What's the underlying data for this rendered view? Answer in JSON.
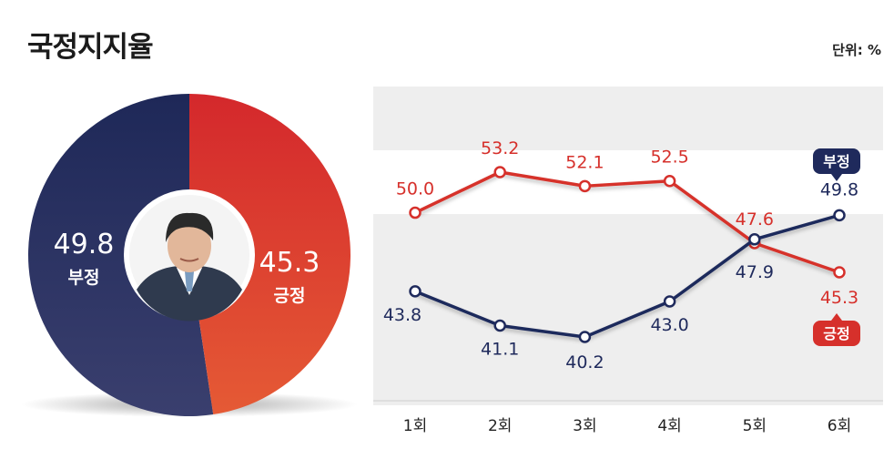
{
  "title": "국정지지율",
  "unit_label": "단위: %",
  "colors": {
    "negative": "#1f2a5c",
    "positive": "#d6302b",
    "band": "#eeeeee"
  },
  "chart_data": [
    {
      "type": "pie",
      "slices": [
        {
          "label": "부정",
          "value": 49.8,
          "value_text": "49.8",
          "color": "#1f2a5c"
        },
        {
          "label": "긍정",
          "value": 45.3,
          "value_text": "45.3",
          "color": "#d6302b"
        }
      ],
      "center_icon": "president-photo-icon"
    },
    {
      "type": "line",
      "categories": [
        "1회",
        "2회",
        "3회",
        "4회",
        "5회",
        "6회"
      ],
      "ylim": [
        38,
        56
      ],
      "grid": true,
      "series": [
        {
          "name": "긍정",
          "color": "#d6302b",
          "values": [
            50.0,
            53.2,
            52.1,
            52.5,
            47.6,
            45.3
          ],
          "labels": [
            "50.0",
            "53.2",
            "52.1",
            "52.5",
            "47.6",
            "45.3"
          ]
        },
        {
          "name": "부정",
          "color": "#1f2a5c",
          "values": [
            43.8,
            41.1,
            40.2,
            43.0,
            47.9,
            49.8
          ],
          "labels": [
            "43.8",
            "41.1",
            "40.2",
            "43.0",
            "47.9",
            "49.8"
          ]
        }
      ]
    }
  ]
}
